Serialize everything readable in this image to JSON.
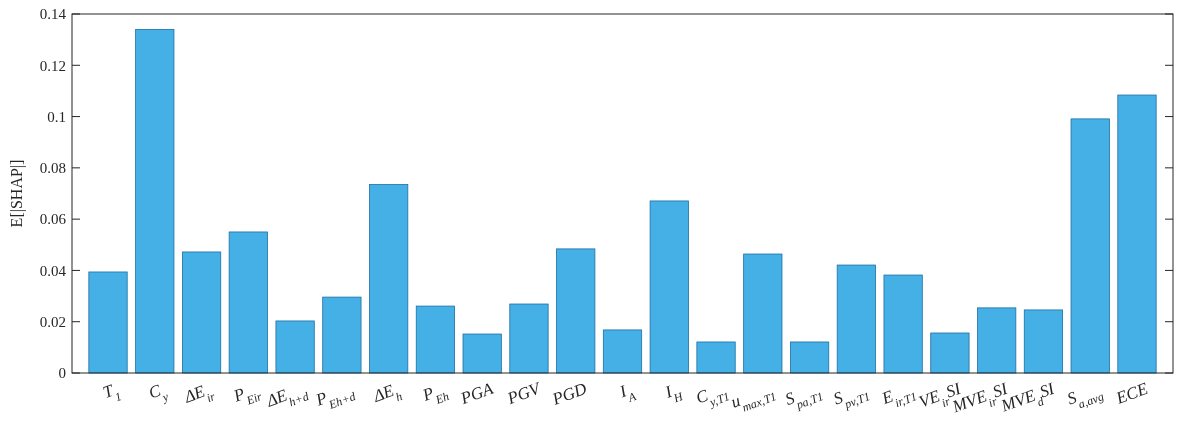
{
  "chart_data": {
    "type": "bar",
    "ylabel": "E[|SHAP|]",
    "categories": [
      "T$_{1}$",
      "C$_{y}$",
      "ΔE$_{ir}$",
      "P$_{Eir}$",
      "ΔE$_{h+d}$",
      "P$_{Eh+d}$",
      "ΔE$_{h}$",
      "P$_{Eh}$",
      "PGA",
      "PGV",
      "PGD",
      "I$_{A}$",
      "I$_{H}$",
      "C$_{y,T1}$",
      "u$_{max,T1}$",
      "S$_{pa,T1}$",
      "S$_{pv,T1}$",
      "E$_{ir,T1}$",
      "VE$_{ir}$SI",
      "MVE$_{ir}$SI",
      "MVE$_{d}$SI",
      "S$_{a,avg}$",
      "ECE"
    ],
    "values": [
      0.0394,
      0.134,
      0.0472,
      0.055,
      0.0203,
      0.0296,
      0.0735,
      0.0261,
      0.0152,
      0.0269,
      0.0484,
      0.0168,
      0.0671,
      0.0121,
      0.0464,
      0.0121,
      0.0421,
      0.0382,
      0.0156,
      0.0254,
      0.0246,
      0.0991,
      0.1084
    ],
    "color": "#45b0e6",
    "ylim": [
      0,
      0.14
    ],
    "yticks": [
      0,
      0.02,
      0.04,
      0.06,
      0.08,
      0.1,
      0.12,
      0.14
    ],
    "grid": false
  }
}
